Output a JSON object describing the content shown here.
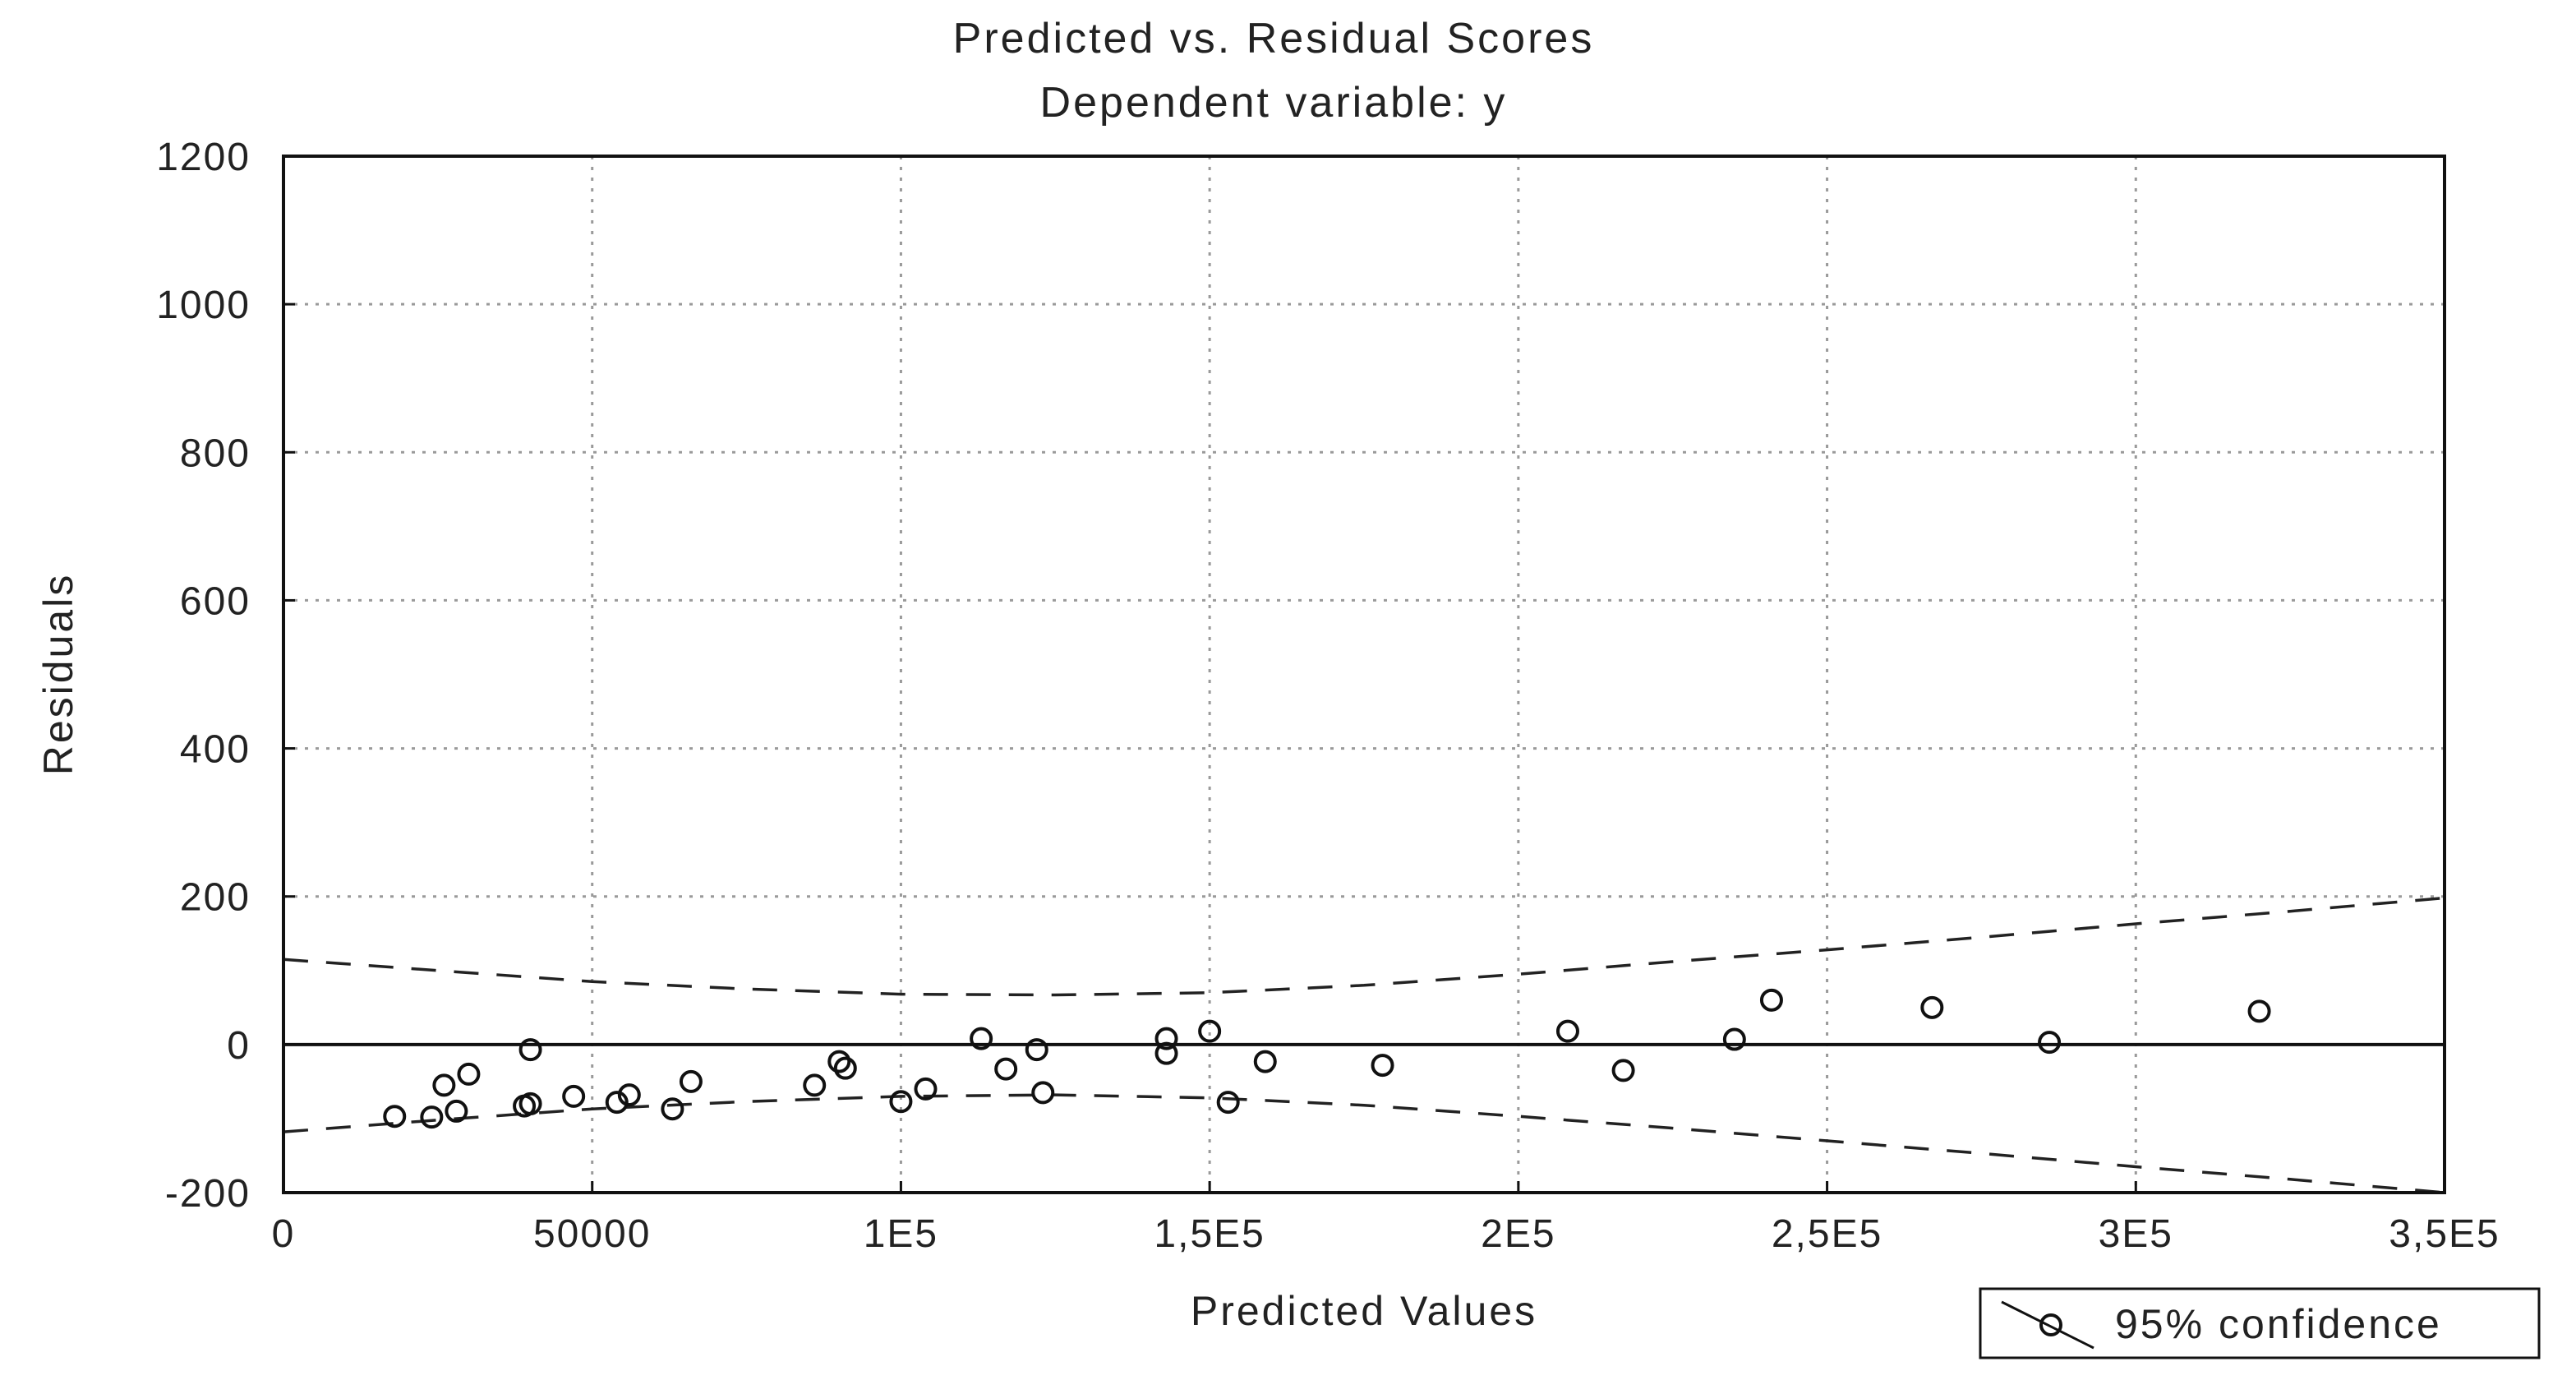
{
  "chart_data": {
    "type": "scatter",
    "title": "Predicted vs. Residual Scores",
    "subtitle": "Dependent variable: y",
    "xlabel": "Predicted Values",
    "ylabel": "Residuals",
    "xlim": [
      0,
      350000
    ],
    "ylim": [
      -200,
      1200
    ],
    "x_ticks": [
      0,
      50000,
      100000,
      150000,
      200000,
      250000,
      300000,
      350000
    ],
    "x_tick_labels": [
      "0",
      "50000",
      "1E5",
      "1,5E5",
      "2E5",
      "2,5E5",
      "3E5",
      "3,5E5"
    ],
    "y_ticks": [
      -200,
      0,
      200,
      400,
      600,
      800,
      1000,
      1200
    ],
    "y_tick_labels": [
      "-200",
      "0",
      "200",
      "400",
      "600",
      "800",
      "1000",
      "1200"
    ],
    "grid": true,
    "legend": {
      "placement": "bottom-right",
      "entries": [
        "95% confidence"
      ]
    },
    "points": [
      {
        "x": 18000,
        "y": -97
      },
      {
        "x": 24000,
        "y": -98
      },
      {
        "x": 26000,
        "y": -55
      },
      {
        "x": 28000,
        "y": -90
      },
      {
        "x": 30000,
        "y": -40
      },
      {
        "x": 39000,
        "y": -83
      },
      {
        "x": 40000,
        "y": -80
      },
      {
        "x": 40000,
        "y": -7
      },
      {
        "x": 47000,
        "y": -70
      },
      {
        "x": 54000,
        "y": -78
      },
      {
        "x": 56000,
        "y": -68
      },
      {
        "x": 63000,
        "y": -87
      },
      {
        "x": 66000,
        "y": -50
      },
      {
        "x": 86000,
        "y": -55
      },
      {
        "x": 90000,
        "y": -23
      },
      {
        "x": 91000,
        "y": -32
      },
      {
        "x": 100000,
        "y": -77
      },
      {
        "x": 104000,
        "y": -60
      },
      {
        "x": 113000,
        "y": 8
      },
      {
        "x": 117000,
        "y": -33
      },
      {
        "x": 122000,
        "y": -7
      },
      {
        "x": 123000,
        "y": -65
      },
      {
        "x": 143000,
        "y": 8
      },
      {
        "x": 143000,
        "y": -12
      },
      {
        "x": 150000,
        "y": 18
      },
      {
        "x": 153000,
        "y": -78
      },
      {
        "x": 159000,
        "y": -23
      },
      {
        "x": 178000,
        "y": -28
      },
      {
        "x": 208000,
        "y": 18
      },
      {
        "x": 217000,
        "y": -35
      },
      {
        "x": 235000,
        "y": 7
      },
      {
        "x": 241000,
        "y": 60
      },
      {
        "x": 267000,
        "y": 50
      },
      {
        "x": 286000,
        "y": 3
      },
      {
        "x": 320000,
        "y": 45
      }
    ],
    "confidence_upper": [
      {
        "x": 0,
        "y": 115
      },
      {
        "x": 25000,
        "y": 100
      },
      {
        "x": 50000,
        "y": 85
      },
      {
        "x": 75000,
        "y": 75
      },
      {
        "x": 100000,
        "y": 68
      },
      {
        "x": 125000,
        "y": 67
      },
      {
        "x": 150000,
        "y": 70
      },
      {
        "x": 175000,
        "y": 80
      },
      {
        "x": 200000,
        "y": 95
      },
      {
        "x": 225000,
        "y": 112
      },
      {
        "x": 250000,
        "y": 128
      },
      {
        "x": 275000,
        "y": 145
      },
      {
        "x": 300000,
        "y": 163
      },
      {
        "x": 325000,
        "y": 180
      },
      {
        "x": 350000,
        "y": 198
      }
    ],
    "confidence_lower": [
      {
        "x": 0,
        "y": -118
      },
      {
        "x": 25000,
        "y": -102
      },
      {
        "x": 50000,
        "y": -87
      },
      {
        "x": 75000,
        "y": -77
      },
      {
        "x": 100000,
        "y": -70
      },
      {
        "x": 125000,
        "y": -68
      },
      {
        "x": 150000,
        "y": -72
      },
      {
        "x": 175000,
        "y": -82
      },
      {
        "x": 200000,
        "y": -97
      },
      {
        "x": 225000,
        "y": -113
      },
      {
        "x": 250000,
        "y": -130
      },
      {
        "x": 275000,
        "y": -147
      },
      {
        "x": 300000,
        "y": -165
      },
      {
        "x": 325000,
        "y": -182
      },
      {
        "x": 350000,
        "y": -200
      }
    ]
  }
}
